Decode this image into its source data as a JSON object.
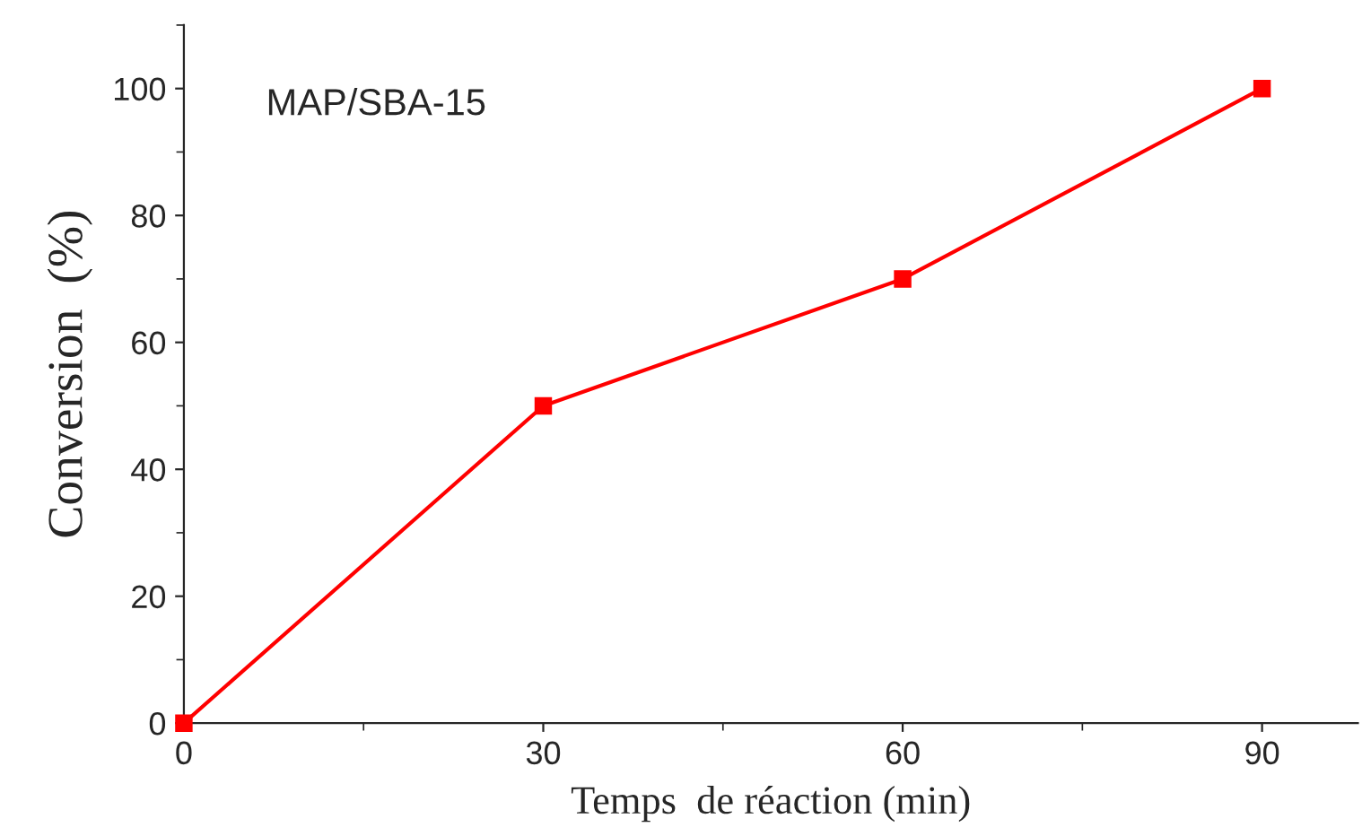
{
  "chart_data": {
    "type": "line",
    "xlabel": "Temps  de réaction (min)",
    "ylabel": "Conversion  (%)",
    "annotations": [
      "MAP/SBA-15"
    ],
    "x": [
      0,
      30,
      60,
      90
    ],
    "series": [
      {
        "color": "#ff0000",
        "values": [
          0,
          50,
          70,
          100
        ]
      }
    ],
    "xlim": [
      0,
      98
    ],
    "ylim": [
      0,
      110
    ],
    "xticks": [
      0,
      30,
      60,
      90
    ],
    "yticks": [
      0,
      20,
      40,
      60,
      80,
      100
    ],
    "marker": "square",
    "line_style": "solid",
    "grid": false,
    "legend": false
  }
}
